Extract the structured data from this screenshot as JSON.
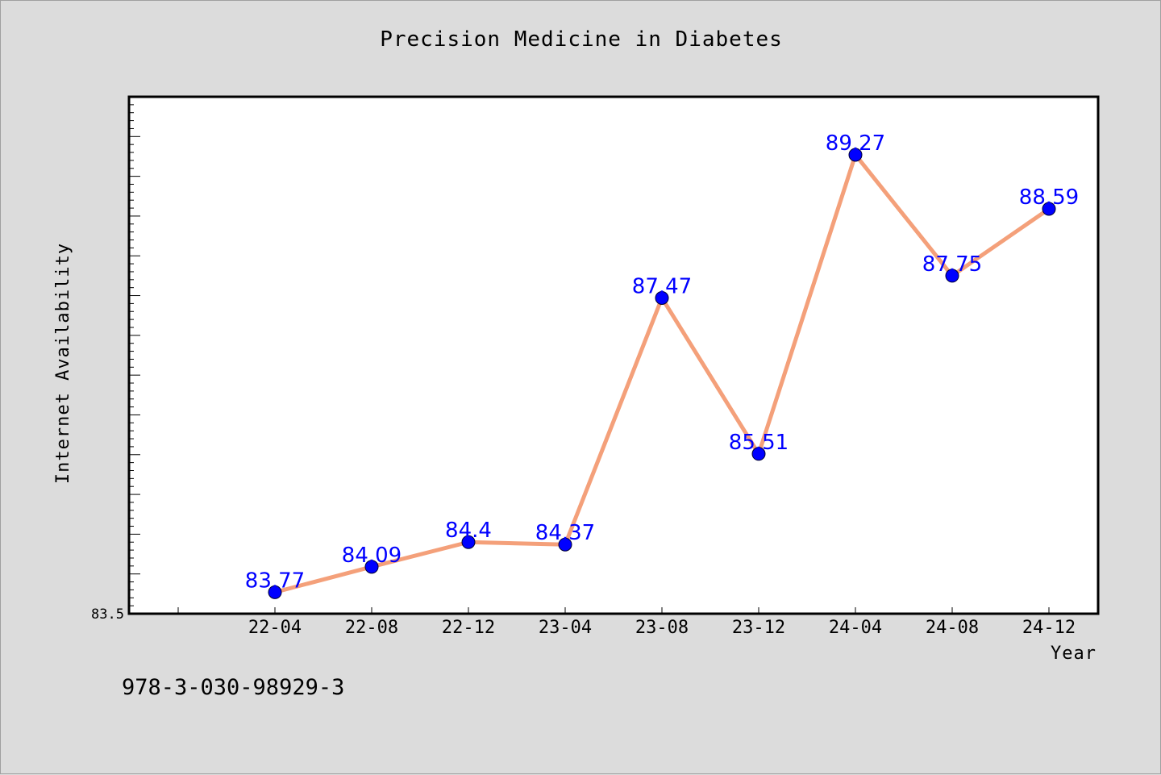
{
  "chart_data": {
    "type": "line",
    "title": "Precision Medicine in Diabetes",
    "xlabel": "Year",
    "ylabel": "Internet Availability",
    "categories": [
      "22-04",
      "22-08",
      "22-12",
      "23-04",
      "23-08",
      "23-12",
      "24-04",
      "24-08",
      "24-12"
    ],
    "series": [
      {
        "values": [
          83.77,
          84.09,
          84.4,
          84.37,
          87.47,
          85.51,
          89.27,
          87.75,
          88.59
        ],
        "data_labels": [
          "83.77",
          "84.09",
          "84.4",
          "84.37",
          "87.47",
          "85.51",
          "89.27",
          "87.75",
          "88.59"
        ]
      }
    ],
    "y_tick_labels": [
      "83.5"
    ],
    "ylim": [
      83.5,
      90.0
    ],
    "grid": false,
    "legend": "none",
    "colors": {
      "line": "#f4a07a",
      "marker": "#0000ff",
      "data_label": "#0000ff",
      "background": "#dcdcdc",
      "plot_area": "#ffffff"
    }
  },
  "footer": {
    "isbn": "978-3-030-98929-3"
  }
}
